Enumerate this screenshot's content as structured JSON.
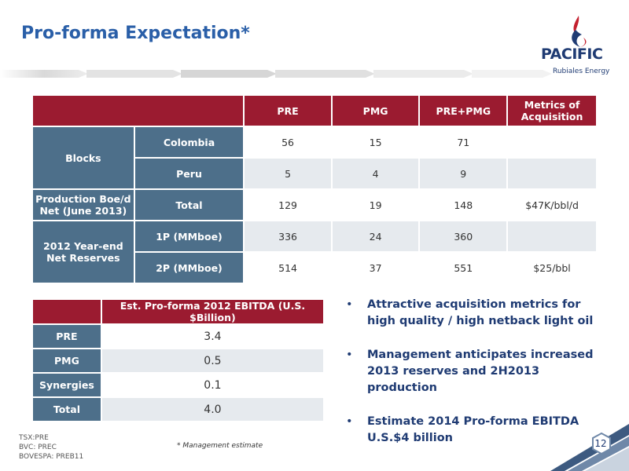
{
  "title": "Pro-forma Expectation*",
  "logo": {
    "name": "PACIFIC",
    "sub": "Rubiales Energy"
  },
  "table1": {
    "headers": [
      "PRE",
      "PMG",
      "PRE+PMG",
      "Metrics of Acquisition"
    ],
    "blocks_label": "Blocks",
    "colombia": {
      "label": "Colombia",
      "pre": "56",
      "pmg": "15",
      "sum": "71",
      "metric": ""
    },
    "peru": {
      "label": "Peru",
      "pre": "5",
      "pmg": "4",
      "sum": "9",
      "metric": ""
    },
    "production_label": "Production Boe/d Net (June 2013)",
    "total": {
      "label": "Total",
      "pre": "129",
      "pmg": "19",
      "sum": "148",
      "metric": "$47K/bbl/d"
    },
    "reserves_label": "2012 Year-end Net Reserves",
    "p1": {
      "label": "1P (MMboe)",
      "pre": "336",
      "pmg": "24",
      "sum": "360",
      "metric": ""
    },
    "p2": {
      "label": "2P (MMboe)",
      "pre": "514",
      "pmg": "37",
      "sum": "551",
      "metric": "$25/bbl"
    }
  },
  "table2": {
    "header": "Est. Pro-forma 2012 EBITDA (U.S. $Billion)",
    "rows": [
      {
        "label": "PRE",
        "value": "3.4"
      },
      {
        "label": "PMG",
        "value": "0.5"
      },
      {
        "label": "Synergies",
        "value": "0.1"
      },
      {
        "label": "Total",
        "value": "4.0"
      }
    ]
  },
  "bullets": [
    "Attractive acquisition metrics for high quality / high netback light oil",
    "Management anticipates increased 2013 reserves and 2H2013 production",
    "Estimate 2014 Pro-forma EBITDA U.S.$4 billion"
  ],
  "tickers": [
    "TSX:PRE",
    "BVC: PREC",
    "BOVESPA: PREB11"
  ],
  "footnote": "* Management estimate",
  "page_number": "12",
  "colors": {
    "header_red": "#9b1b30",
    "row_blue": "#4d6f8a",
    "title_blue": "#2a5fa8"
  }
}
